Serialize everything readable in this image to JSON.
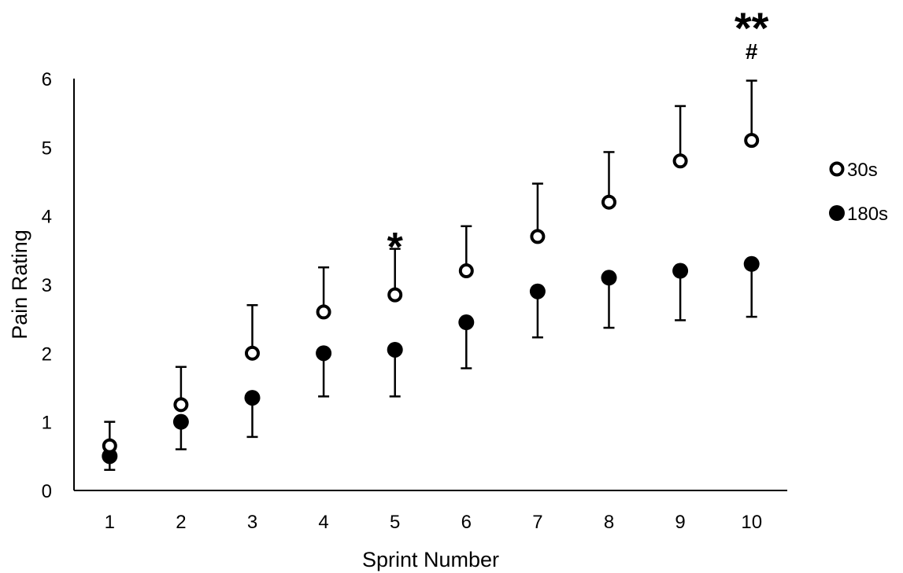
{
  "chart_data": {
    "type": "scatter",
    "title": "",
    "xlabel": "Sprint Number",
    "ylabel": "Pain Rating",
    "categories": [
      "1",
      "2",
      "3",
      "4",
      "5",
      "6",
      "7",
      "8",
      "9",
      "10"
    ],
    "ylim": [
      0,
      6
    ],
    "yticks": [
      "0",
      "1",
      "2",
      "3",
      "4",
      "5",
      "6"
    ],
    "grid": false,
    "legend_position": "right",
    "error_bars": true,
    "series": [
      {
        "name": "30s",
        "marker": "open-circle",
        "values": [
          0.65,
          1.25,
          2.0,
          2.6,
          2.85,
          3.2,
          3.7,
          4.2,
          4.8,
          5.1
        ],
        "error_upper": [
          1.0,
          1.8,
          2.7,
          3.25,
          3.52,
          3.85,
          4.47,
          4.93,
          5.6,
          5.97
        ]
      },
      {
        "name": "180s",
        "marker": "filled-circle",
        "values": [
          0.5,
          1.0,
          1.35,
          2.0,
          2.05,
          2.45,
          2.9,
          3.1,
          3.2,
          3.3
        ],
        "error_lower": [
          0.3,
          0.6,
          0.78,
          1.37,
          1.37,
          1.78,
          2.23,
          2.37,
          2.48,
          2.53
        ]
      }
    ],
    "annotations": [
      {
        "text": "*",
        "category": "5"
      },
      {
        "text": "**",
        "category": "10"
      },
      {
        "text": "#",
        "category": "10"
      }
    ]
  },
  "colors": {
    "axis": "#000000",
    "marker": "#000000",
    "open_fill": "#ffffff"
  }
}
